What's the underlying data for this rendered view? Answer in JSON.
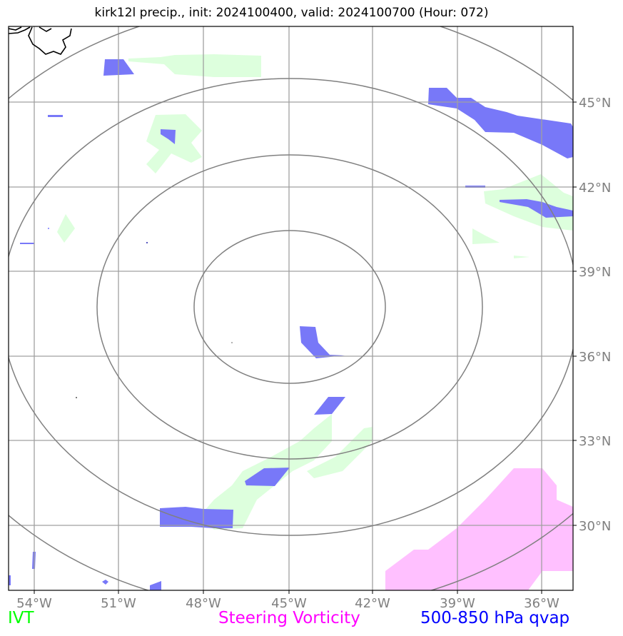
{
  "title": "kirk12l precip., init: 2024100400, valid: 2024100700 (Hour: 072)",
  "lat_labels": [
    "45°N",
    "42°N",
    "39°N",
    "36°N",
    "33°N",
    "30°N"
  ],
  "lon_labels": [
    "54°W",
    "51°W",
    "48°W",
    "45°W",
    "42°W",
    "39°W",
    "36°W"
  ],
  "legend": {
    "ivt": "IVT",
    "vorticity": "Steering Vorticity",
    "qvap": "500-850 hPa qvap"
  },
  "colors": {
    "ivt": "#ddffdd",
    "vorticity": "#ffc0ff",
    "qvap": "#7878f8",
    "grid": "#a0a0a0",
    "rings": "#808080"
  }
}
